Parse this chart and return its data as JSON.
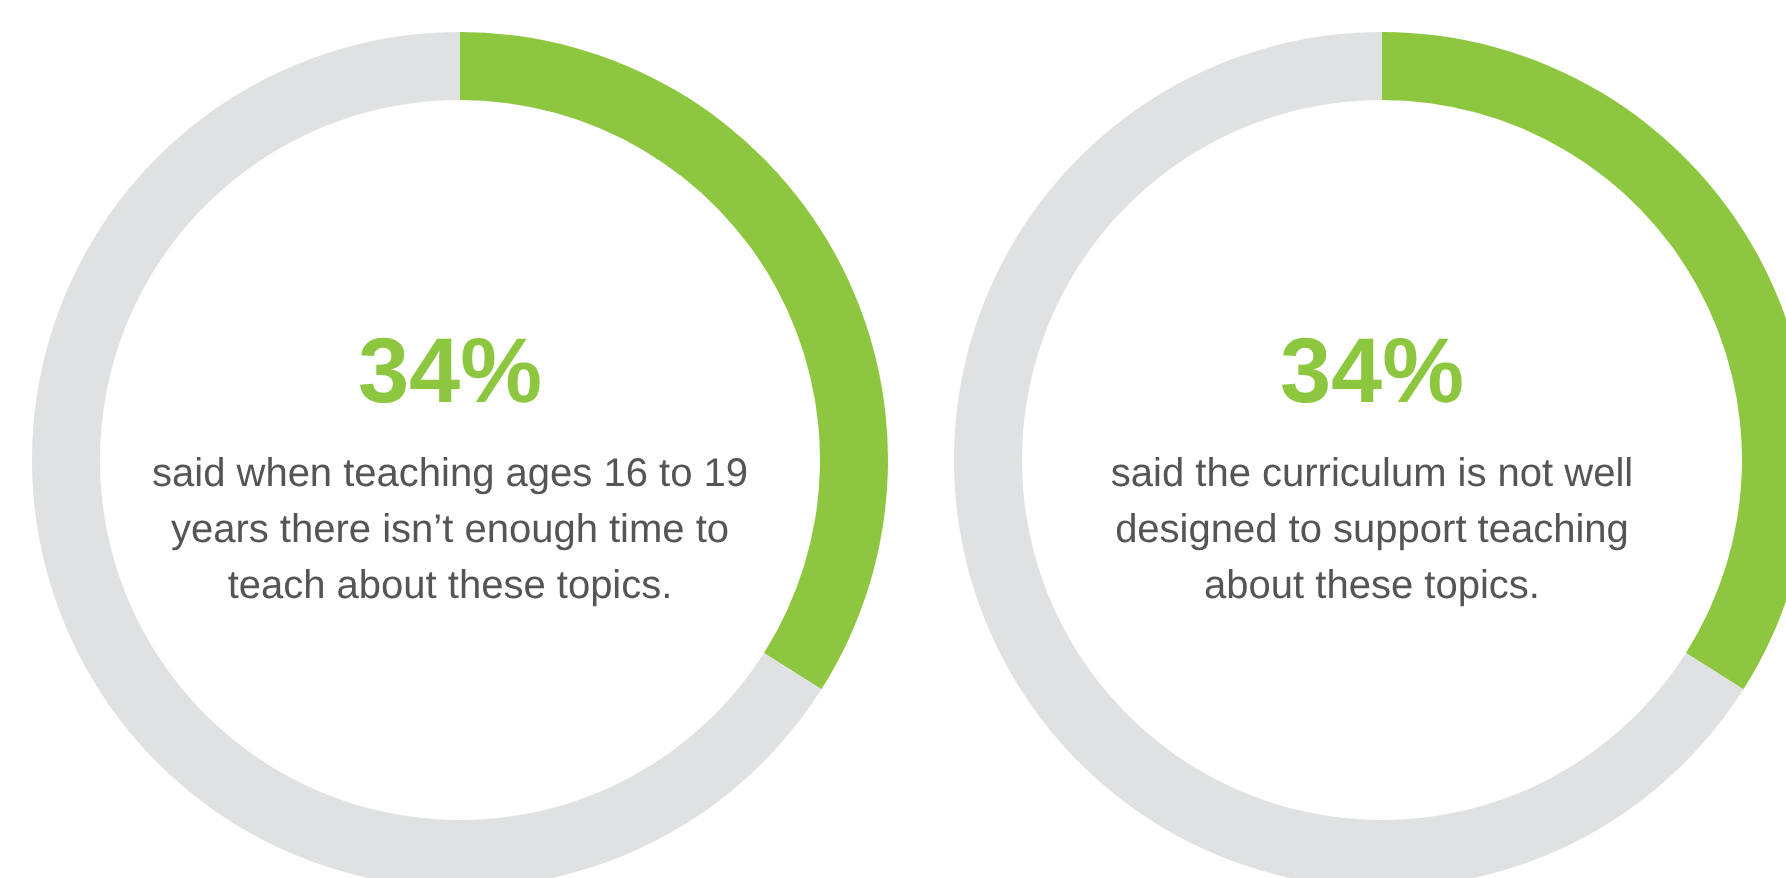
{
  "chart_data": [
    {
      "type": "donut",
      "categories": [
        null,
        null
      ],
      "values": [
        34,
        66
      ],
      "colors": [
        "#8dc63f",
        "#e0e1e2"
      ],
      "value_labels": [
        "34%",
        null
      ],
      "annotations": [
        "said when teaching ages 16 to 19 years there isn’t enough time to teach about these topics."
      ]
    },
    {
      "type": "donut",
      "categories": [
        null,
        null
      ],
      "values": [
        34,
        66
      ],
      "colors": [
        "#8dc63f",
        "#e0e1e2"
      ],
      "value_labels": [
        "34%",
        null
      ],
      "annotations": [
        "said the curriculum is not well designed to support teaching about these topics."
      ]
    }
  ]
}
